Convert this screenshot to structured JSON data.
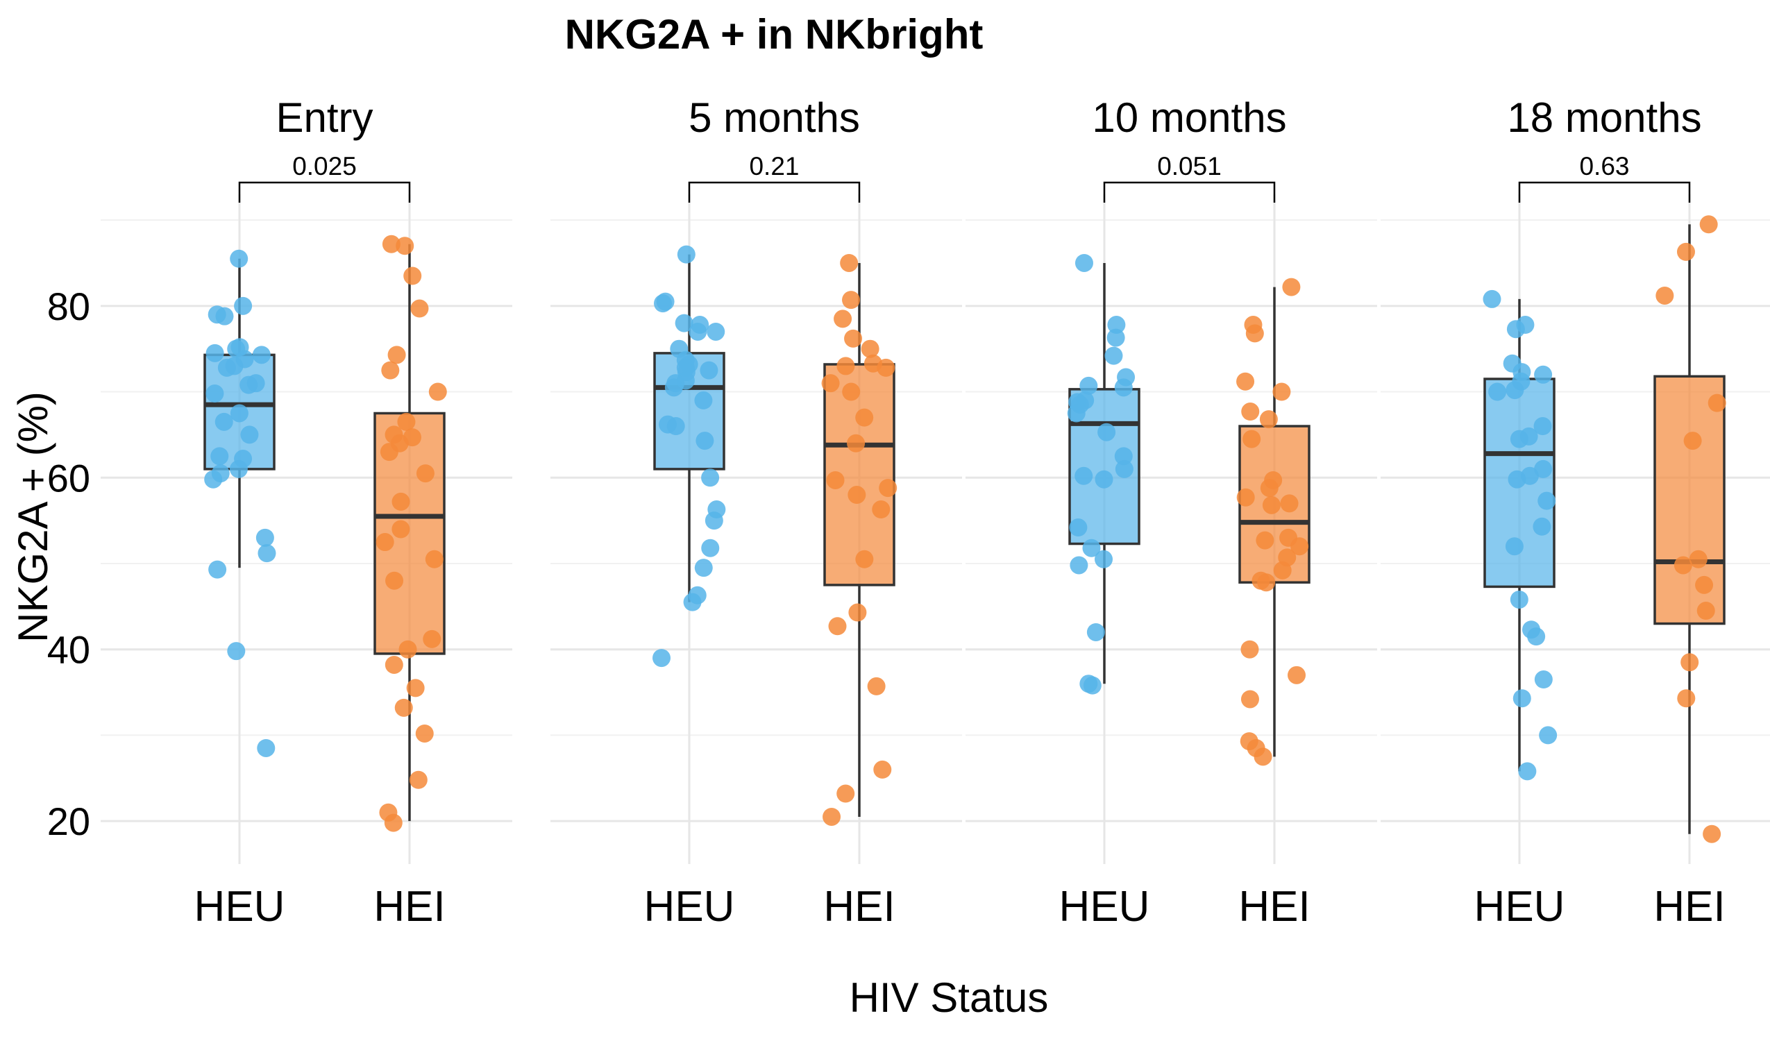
{
  "chart_data": {
    "type": "box",
    "title": "NKG2A + in NKbright",
    "xlabel": "HIV Status",
    "ylabel": "NKG2A + (%)",
    "ylim": [
      15,
      93
    ],
    "yticks": [
      20,
      40,
      60,
      80
    ],
    "grid": true,
    "legend": "none",
    "group_colors": {
      "HEU": "#56B4E9",
      "HEI": "#F4893A"
    },
    "facets": [
      {
        "label": "Entry",
        "pvalue": "0.025",
        "groups": [
          {
            "name": "HEU",
            "box": {
              "q1": 61,
              "median": 68.5,
              "q3": 74.3,
              "whisker_low": 49.5,
              "whisker_high": 85.5
            },
            "points": [
              85.5,
              80,
              79,
              78.8,
              75,
              75.2,
              74.5,
              74.3,
              73.8,
              73,
              72.8,
              71,
              70.8,
              69.8,
              67.5,
              66.5,
              65,
              62.5,
              62.2,
              61,
              60.5,
              59.8,
              53,
              51.2,
              49.3,
              39.8,
              28.5
            ]
          },
          {
            "name": "HEI",
            "box": {
              "q1": 39.5,
              "median": 55.5,
              "q3": 67.5,
              "whisker_low": 20,
              "whisker_high": 87.2
            },
            "points": [
              87.2,
              87,
              83.5,
              79.7,
              74.3,
              72.5,
              70,
              66.5,
              65,
              64.7,
              64,
              63,
              60.5,
              57.2,
              54,
              52.5,
              50.5,
              48,
              41.2,
              40,
              38.2,
              35.5,
              33.2,
              30.2,
              24.8,
              21,
              19.8
            ]
          }
        ]
      },
      {
        "label": "5 months",
        "pvalue": "0.21",
        "groups": [
          {
            "name": "HEU",
            "box": {
              "q1": 61,
              "median": 70.5,
              "q3": 74.5,
              "whisker_low": 45.5,
              "whisker_high": 86
            },
            "points": [
              86,
              80.5,
              80.3,
              78,
              77.8,
              77,
              77,
              75,
              73.7,
              73.2,
              72.8,
              72.5,
              72.3,
              71.3,
              71,
              70.5,
              69,
              66.2,
              66,
              64.3,
              60,
              56.3,
              55,
              51.8,
              49.5,
              46.3,
              45.5,
              39
            ]
          },
          {
            "name": "HEI",
            "box": {
              "q1": 47.5,
              "median": 63.8,
              "q3": 73.2,
              "whisker_low": 20.5,
              "whisker_high": 85
            },
            "points": [
              85,
              80.7,
              78.5,
              76.2,
              75,
              73.3,
              73,
              72.8,
              71,
              70,
              67,
              64,
              59.7,
              58.8,
              58,
              56.3,
              50.5,
              44.3,
              42.7,
              35.7,
              26,
              23.2,
              20.5
            ]
          }
        ]
      },
      {
        "label": "10 months",
        "pvalue": "0.051",
        "groups": [
          {
            "name": "HEU",
            "box": {
              "q1": 52.3,
              "median": 66.3,
              "q3": 70.3,
              "whisker_low": 36,
              "whisker_high": 85
            },
            "points": [
              85,
              77.8,
              76.3,
              74.2,
              71.7,
              70.7,
              70.5,
              69,
              68.8,
              68.5,
              67.5,
              65.3,
              62.5,
              61,
              60.2,
              59.8,
              54.2,
              51.8,
              50.5,
              49.8,
              42,
              36,
              35.8
            ]
          },
          {
            "name": "HEI",
            "box": {
              "q1": 47.8,
              "median": 54.8,
              "q3": 66,
              "whisker_low": 27.5,
              "whisker_high": 82.2
            },
            "points": [
              82.2,
              77.8,
              76.8,
              71.2,
              70,
              67.7,
              66.8,
              64.5,
              59.7,
              58.8,
              57.7,
              57,
              56.8,
              53,
              52.7,
              52,
              50.7,
              49.2,
              48,
              47.8,
              40,
              37,
              34.2,
              29.3,
              28.5,
              27.5
            ]
          }
        ]
      },
      {
        "label": "18 months",
        "pvalue": "0.63",
        "groups": [
          {
            "name": "HEU",
            "box": {
              "q1": 47.3,
              "median": 62.8,
              "q3": 71.5,
              "whisker_low": 25.8,
              "whisker_high": 80.8
            },
            "points": [
              80.8,
              77.8,
              77.3,
              73.3,
              72.3,
              72,
              71.2,
              70.2,
              70,
              66,
              64.8,
              64.5,
              61,
              60.2,
              59.8,
              57.3,
              54.3,
              52,
              45.8,
              42.3,
              41.5,
              36.5,
              34.3,
              30,
              25.8
            ]
          },
          {
            "name": "HEI",
            "box": {
              "q1": 43,
              "median": 50.2,
              "q3": 71.8,
              "whisker_low": 18.5,
              "whisker_high": 89.5
            },
            "points": [
              89.5,
              86.3,
              81.2,
              68.7,
              64.3,
              50.5,
              49.8,
              47.5,
              44.5,
              38.5,
              34.3,
              18.5
            ]
          }
        ]
      }
    ]
  }
}
